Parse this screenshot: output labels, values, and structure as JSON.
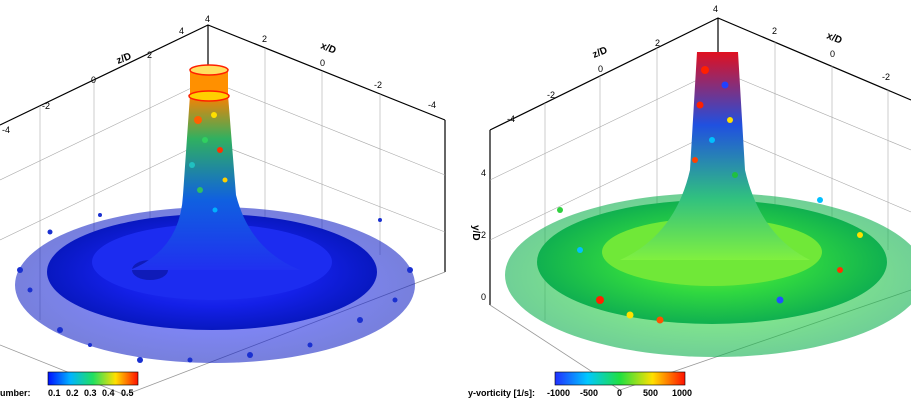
{
  "left_panel": {
    "axes": {
      "x": "x/D",
      "z": "z/D"
    },
    "z_ticks": [
      "4",
      "2",
      "0",
      "-2",
      "-4"
    ],
    "x_ticks": [
      "2",
      "0",
      "-2",
      "-4"
    ],
    "colorbar": {
      "label": "umber:",
      "ticks": [
        "0.1",
        "0.2",
        "0.3",
        "0.4",
        "0.5"
      ],
      "colors": [
        "#0030ff",
        "#00c0ff",
        "#20e060",
        "#ffe000",
        "#ff2000"
      ]
    }
  },
  "right_panel": {
    "axes": {
      "x": "x/D",
      "z": "z/D",
      "y": "y/D"
    },
    "z_ticks": [
      "4",
      "2",
      "0",
      "-2",
      "-4"
    ],
    "x_ticks": [
      "2",
      "0",
      "-2"
    ],
    "y_ticks": [
      "4",
      "2",
      "0"
    ],
    "colorbar": {
      "label": "y-vorticity [1/s]:",
      "ticks": [
        "-1000",
        "-500",
        "0",
        "500",
        "1000"
      ],
      "colors": [
        "#2040ff",
        "#00c8ff",
        "#20e040",
        "#ffe000",
        "#ff1a00"
      ]
    }
  }
}
